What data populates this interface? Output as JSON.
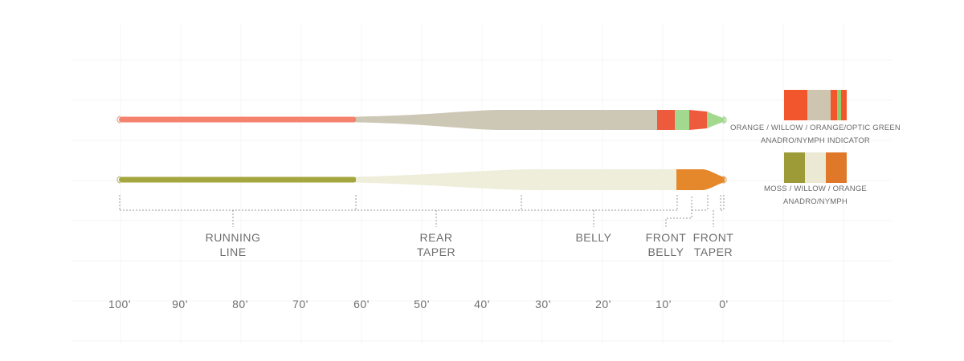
{
  "lines": [
    {
      "id": "line-1",
      "colors": {
        "running": "#f4826c",
        "body": "#cdc7b5",
        "tip1": "#ee5a3c",
        "tip2": "#a2d98e",
        "tip3": "#ee5a3c",
        "tip4": "#a2d98e"
      },
      "swatch": [
        {
          "color": "#f2562c",
          "w": 2
        },
        {
          "color": "#cdc5b0",
          "w": 2
        },
        {
          "color": "#f2562c",
          "w": 0.6
        },
        {
          "color": "#8fce6f",
          "w": 0.3
        },
        {
          "color": "#f2562c",
          "w": 0.5
        }
      ],
      "caption_line1": "ORANGE / WILLOW / ORANGE/OPTIC GREEN",
      "caption_line2": "ANADRO/NYMPH INDICATOR"
    },
    {
      "id": "line-2",
      "colors": {
        "running": "#a4a640",
        "body": "#eeeedb",
        "tip": "#e5882c"
      },
      "swatch": [
        {
          "color": "#9c9b38",
          "w": 1
        },
        {
          "color": "#ebe8d4",
          "w": 1
        },
        {
          "color": "#e0782a",
          "w": 1
        }
      ],
      "caption_line1": "MOSS / WILLOW / ORANGE",
      "caption_line2": "ANADRO/NYMPH"
    }
  ],
  "sections": [
    {
      "line1": "RUNNING",
      "line2": "LINE"
    },
    {
      "line1": "REAR",
      "line2": "TAPER"
    },
    {
      "line1": "BELLY",
      "line2": ""
    },
    {
      "line1": "FRONT",
      "line2": "BELLY"
    },
    {
      "line1": "FRONT",
      "line2": "TAPER"
    }
  ],
  "scale_ticks": [
    "100'",
    "90'",
    "80'",
    "70'",
    "60'",
    "50'",
    "40'",
    "30'",
    "20'",
    "10'",
    "0'"
  ]
}
